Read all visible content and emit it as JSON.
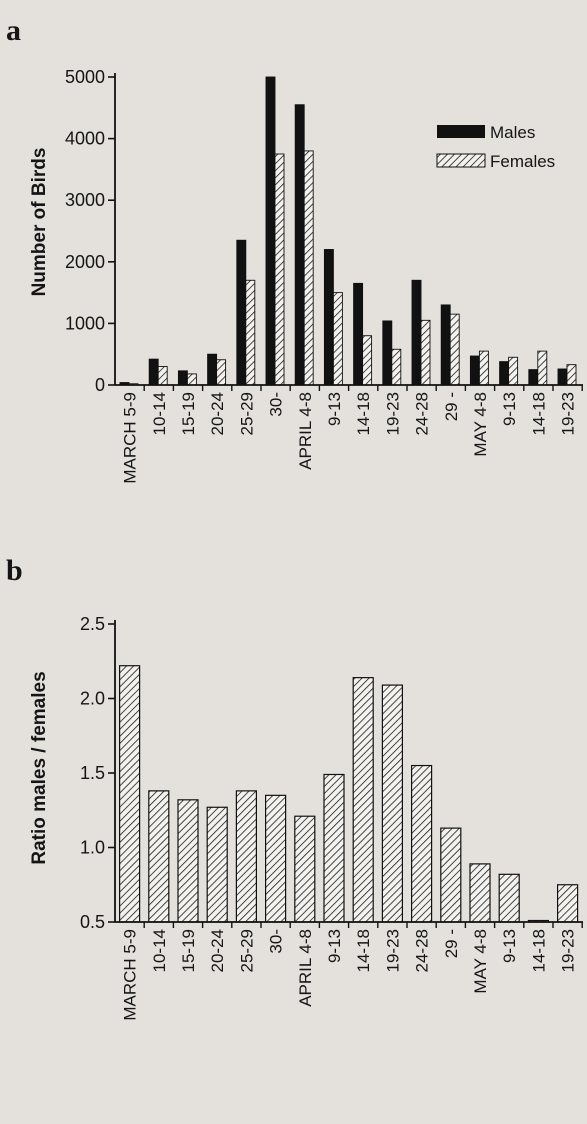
{
  "chart_data": [
    {
      "panel": "a",
      "type": "bar",
      "ylabel": "Number of Birds",
      "xlabel": "",
      "ylim": [
        0,
        5000
      ],
      "yticks": [
        0,
        1000,
        2000,
        3000,
        4000,
        5000
      ],
      "categories": [
        "MARCH 5-9",
        "10-14",
        "15-19",
        "20-24",
        "25-29",
        "30-",
        "APRIL 4-8",
        "9-13",
        "14-18",
        "19-23",
        "24-28",
        "29 -",
        "MAY 4-8",
        "9-13",
        "14-18",
        "19-23"
      ],
      "series": [
        {
          "name": "Males",
          "color": "#111111",
          "pattern": "solid",
          "values": [
            40,
            420,
            230,
            500,
            2350,
            5000,
            4550,
            2200,
            1650,
            1040,
            1700,
            1300,
            470,
            380,
            250,
            260
          ]
        },
        {
          "name": "Females",
          "color": "#ffffff",
          "pattern": "hatched",
          "values": [
            20,
            300,
            180,
            410,
            1700,
            3750,
            3800,
            1500,
            800,
            580,
            1050,
            1150,
            550,
            450,
            550,
            330
          ]
        }
      ],
      "legend": "top-right",
      "grid": false
    },
    {
      "panel": "b",
      "type": "bar",
      "ylabel": "Ratio males / females",
      "xlabel": "",
      "ylim": [
        0.5,
        2.5
      ],
      "yticks": [
        "0.5",
        "1.0",
        "1.5",
        "2.0",
        "2.5"
      ],
      "categories": [
        "MARCH 5-9",
        "10-14",
        "15-19",
        "20-24",
        "25-29",
        "30-",
        "APRIL 4-8",
        "9-13",
        "14-18",
        "19-23",
        "24-28",
        "29 -",
        "MAY 4-8",
        "9-13",
        "14-18",
        "19-23"
      ],
      "series": [
        {
          "pattern": "hatched",
          "values": [
            2.22,
            1.38,
            1.32,
            1.27,
            1.38,
            1.35,
            1.21,
            1.49,
            2.14,
            2.09,
            1.55,
            1.13,
            0.89,
            0.82,
            0.51,
            0.75
          ]
        }
      ],
      "grid": false
    }
  ]
}
